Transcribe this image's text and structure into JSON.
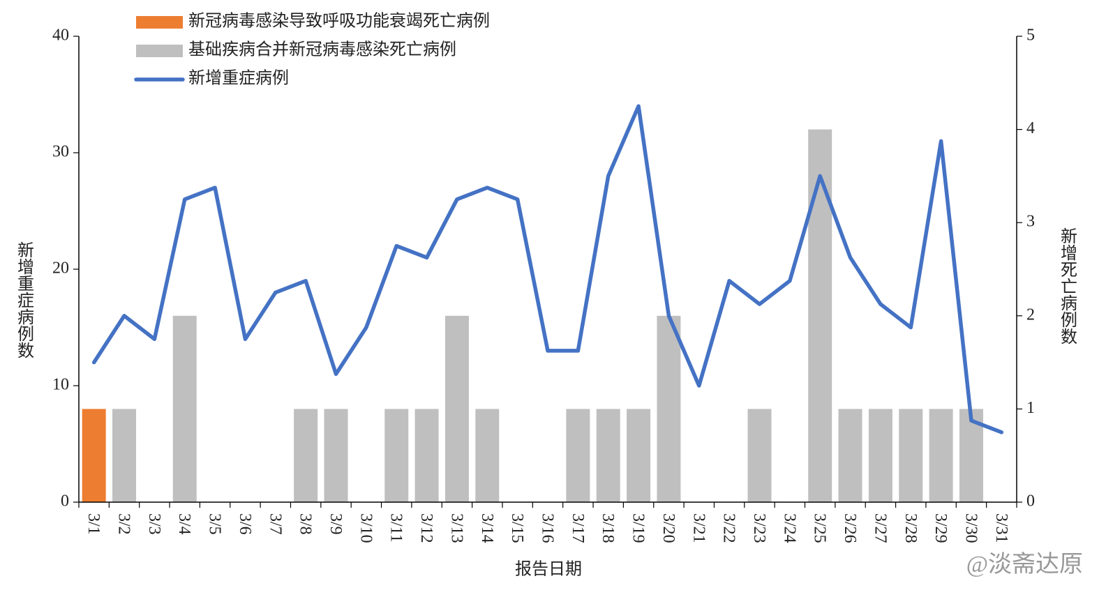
{
  "chart_data": {
    "type": "bar-line",
    "x_label": "报告日期",
    "y_label": "新增重症病例数",
    "y2_label": "新增死亡病例数",
    "watermark": "@淡斋达原",
    "categories": [
      "3/1",
      "3/2",
      "3/3",
      "3/4",
      "3/5",
      "3/6",
      "3/7",
      "3/8",
      "3/9",
      "3/10",
      "3/11",
      "3/12",
      "3/13",
      "3/14",
      "3/15",
      "3/16",
      "3/17",
      "3/18",
      "3/19",
      "3/20",
      "3/21",
      "3/22",
      "3/23",
      "3/24",
      "3/25",
      "3/26",
      "3/27",
      "3/28",
      "3/29",
      "3/30",
      "3/31"
    ],
    "series": [
      {
        "name": "新冠病毒感染导致呼吸功能衰竭死亡病例",
        "type": "bar",
        "axis": "y2",
        "color": "#ed7d31",
        "values": [
          1,
          0,
          0,
          0,
          0,
          0,
          0,
          0,
          0,
          0,
          0,
          0,
          0,
          0,
          0,
          0,
          0,
          0,
          0,
          0,
          0,
          0,
          0,
          0,
          0,
          0,
          0,
          0,
          0,
          0,
          0
        ]
      },
      {
        "name": "基础疾病合并新冠病毒感染死亡病例",
        "type": "bar",
        "axis": "y2",
        "color": "#bfbfbf",
        "values": [
          0,
          1,
          0,
          2,
          0,
          0,
          0,
          1,
          1,
          0,
          1,
          1,
          2,
          1,
          0,
          0,
          1,
          1,
          1,
          2,
          0,
          0,
          1,
          0,
          4,
          1,
          1,
          1,
          1,
          1,
          0
        ]
      },
      {
        "name": "新增重症病例",
        "type": "line",
        "axis": "y",
        "color": "#4472c4",
        "values": [
          12,
          16,
          14,
          26,
          27,
          14,
          18,
          19,
          11,
          15,
          22,
          21,
          26,
          27,
          26,
          13,
          13,
          28,
          34,
          16,
          10,
          19,
          17,
          19,
          28,
          21,
          17,
          15,
          31,
          7,
          6
        ]
      }
    ],
    "ylim": [
      0,
      40
    ],
    "yticks": [
      0,
      10,
      20,
      30,
      40
    ],
    "y2lim": [
      0,
      5
    ],
    "y2ticks": [
      0,
      1,
      2,
      3,
      4,
      5
    ]
  }
}
